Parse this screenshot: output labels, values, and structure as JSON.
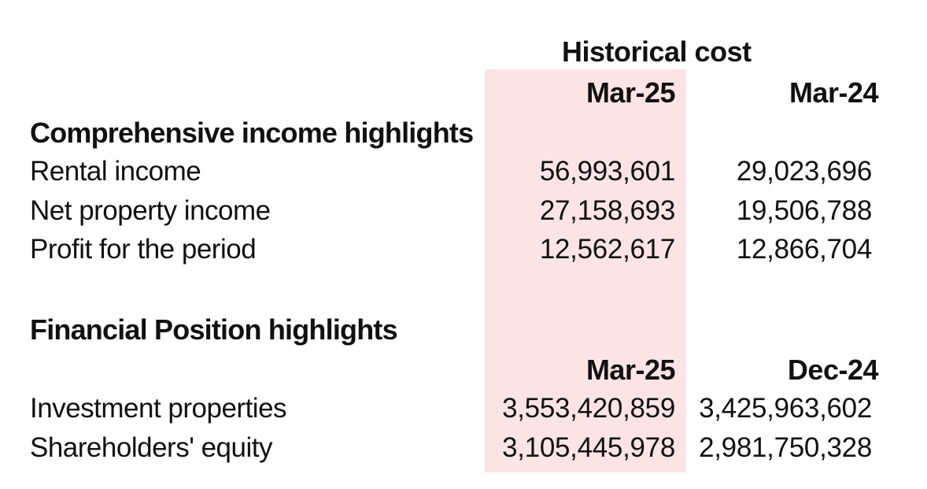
{
  "column_group_title": "Historical cost",
  "income": {
    "col1_header": "Mar-25",
    "col2_header": "Mar-24",
    "section_title": "Comprehensive income highlights",
    "rows": [
      {
        "label": "Rental income",
        "v1": "56,993,601",
        "v2": "29,023,696"
      },
      {
        "label": "Net property income",
        "v1": "27,158,693",
        "v2": "19,506,788"
      },
      {
        "label": "Profit for the period",
        "v1": "12,562,617",
        "v2": "12,866,704"
      }
    ]
  },
  "position": {
    "section_title": "Financial Position highlights",
    "col1_header": "Mar-25",
    "col2_header": "Dec-24",
    "rows": [
      {
        "label": "Investment properties",
        "v1": "3,553,420,859",
        "v2": "3,425,963,602"
      },
      {
        "label": "Shareholders' equity",
        "v1": "3,105,445,978",
        "v2": "2,981,750,328"
      }
    ]
  },
  "colors": {
    "highlight_column": "#fce4e6",
    "text": "#111111"
  }
}
